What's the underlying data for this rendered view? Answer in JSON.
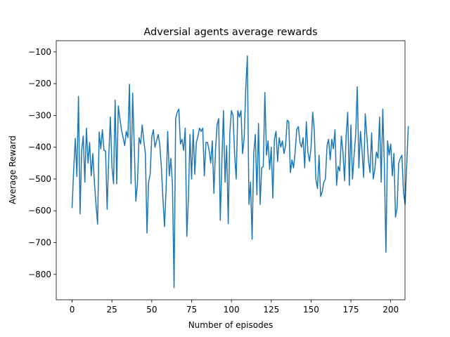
{
  "chart_data": {
    "type": "line",
    "title": "Adversial agents average rewards",
    "xlabel": "Number of episodes",
    "ylabel": "Average Reward",
    "xlim": [
      -9.95,
      208.95
    ],
    "ylim": [
      -880,
      -65
    ],
    "xticks": [
      0,
      25,
      50,
      75,
      100,
      125,
      150,
      175,
      200
    ],
    "yticks": [
      -800,
      -700,
      -600,
      -500,
      -400,
      -300,
      -200,
      -100
    ],
    "grid": false,
    "line_color": "#1f77b4",
    "series": [
      {
        "values": [
          -590,
          -470,
          -372,
          -492,
          -240,
          -610,
          -410,
          -365,
          -510,
          -340,
          -450,
          -385,
          -490,
          -420,
          -510,
          -580,
          -642,
          -352,
          -405,
          -345,
          -410,
          -412,
          -595,
          -430,
          -305,
          -460,
          -515,
          -252,
          -515,
          -270,
          -310,
          -345,
          -370,
          -395,
          -350,
          -370,
          -202,
          -515,
          -230,
          -395,
          -570,
          -515,
          -370,
          -390,
          -330,
          -380,
          -420,
          -670,
          -510,
          -485,
          -368,
          -345,
          -400,
          -380,
          -360,
          -390,
          -460,
          -560,
          -650,
          -530,
          -350,
          -490,
          -435,
          -520,
          -842,
          -310,
          -290,
          -280,
          -390,
          -375,
          -410,
          -340,
          -680,
          -560,
          -360,
          -500,
          -345,
          -485,
          -385,
          -365,
          -340,
          -350,
          -340,
          -490,
          -385,
          -385,
          -410,
          -450,
          -380,
          -545,
          -410,
          -330,
          -310,
          -630,
          -445,
          -285,
          -510,
          -395,
          -640,
          -355,
          -285,
          -300,
          -420,
          -500,
          -285,
          -305,
          -285,
          -420,
          -370,
          -215,
          -113,
          -580,
          -510,
          -690,
          -420,
          -360,
          -550,
          -325,
          -580,
          -465,
          -460,
          -228,
          -425,
          -380,
          -470,
          -400,
          -560,
          -375,
          -350,
          -445,
          -370,
          -400,
          -380,
          -420,
          -395,
          -315,
          -320,
          -480,
          -440,
          -465,
          -415,
          -345,
          -335,
          -385,
          -400,
          -370,
          -465,
          -320,
          -415,
          -445,
          -400,
          -290,
          -345,
          -500,
          -530,
          -425,
          -555,
          -540,
          -510,
          -500,
          -395,
          -375,
          -440,
          -375,
          -405,
          -345,
          -520,
          -460,
          -475,
          -365,
          -415,
          -505,
          -365,
          -290,
          -520,
          -330,
          -500,
          -425,
          -360,
          -210,
          -465,
          -350,
          -412,
          -495,
          -295,
          -365,
          -440,
          -480,
          -355,
          -500,
          -470,
          -415,
          -435,
          -305,
          -510,
          -280,
          -460,
          -730,
          -380,
          -425,
          -390,
          -490,
          -420,
          -620,
          -590,
          -450,
          -435,
          -425,
          -540,
          -580,
          -460,
          -335
        ]
      }
    ]
  }
}
